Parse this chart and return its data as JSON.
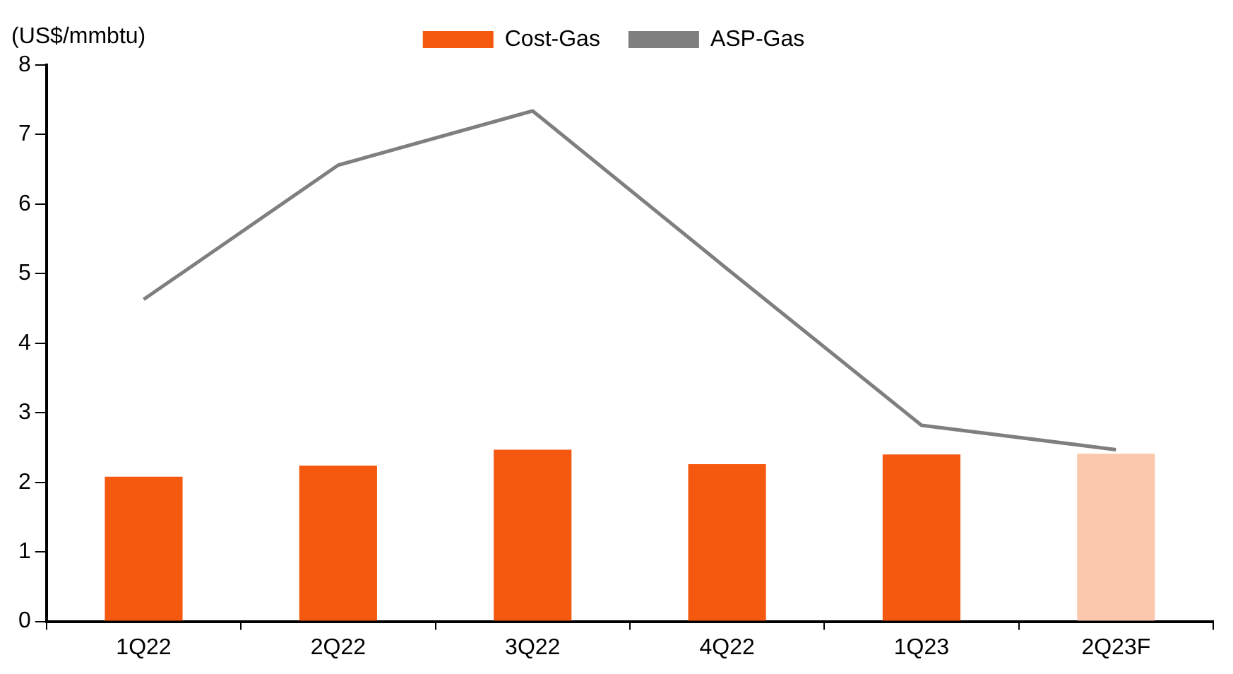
{
  "chart_data": {
    "type": "bar",
    "ylabel": "(US$/mmbtu)",
    "categories": [
      "1Q22",
      "2Q22",
      "3Q22",
      "4Q22",
      "1Q23",
      "2Q23F"
    ],
    "series": [
      {
        "name": "Cost-Gas",
        "color": "#f4590f",
        "colors": [
          "#f4590f",
          "#f4590f",
          "#f4590f",
          "#f4590f",
          "#f4590f",
          "#fbc8ad"
        ],
        "values": [
          2.08,
          2.24,
          2.47,
          2.26,
          2.4,
          2.41
        ]
      },
      {
        "name": "ASP-Gas",
        "type": "line",
        "color": "#7f7f7f",
        "values": [
          4.63,
          6.56,
          7.34,
          5.07,
          2.82,
          2.47
        ]
      }
    ],
    "ylim": [
      0,
      8
    ],
    "yticks": [
      0,
      1,
      2,
      3,
      4,
      5,
      6,
      7,
      8
    ],
    "grid": false,
    "legend": "top",
    "marker": "none"
  }
}
